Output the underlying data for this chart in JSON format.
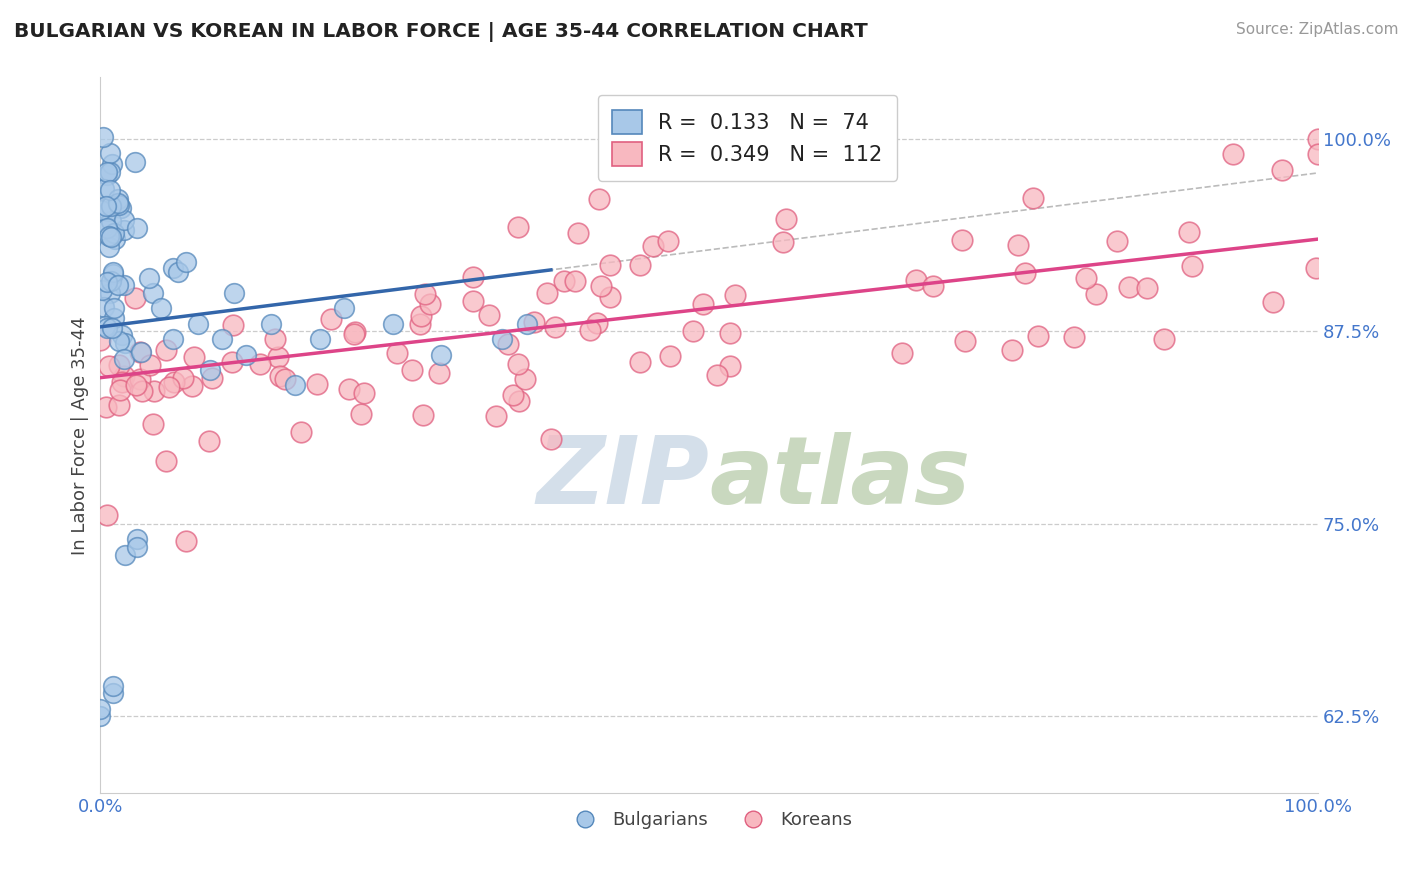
{
  "title": "BULGARIAN VS KOREAN IN LABOR FORCE | AGE 35-44 CORRELATION CHART",
  "source": "Source: ZipAtlas.com",
  "ylabel": "In Labor Force | Age 35-44",
  "xlim": [
    0.0,
    1.0
  ],
  "ylim": [
    0.575,
    1.04
  ],
  "yticks": [
    0.625,
    0.75,
    0.875,
    1.0
  ],
  "ytick_labels": [
    "62.5%",
    "75.0%",
    "87.5%",
    "100.0%"
  ],
  "xtick_labels": [
    "0.0%",
    "100.0%"
  ],
  "legend_r_blue": "0.133",
  "legend_n_blue": "74",
  "legend_r_pink": "0.349",
  "legend_n_pink": "112",
  "blue_fill": "#a8c8e8",
  "blue_edge": "#5588bb",
  "pink_fill": "#f8b8c0",
  "pink_edge": "#e06080",
  "blue_line": "#3366aa",
  "pink_line": "#dd4488",
  "watermark_color": "#d0dce8"
}
